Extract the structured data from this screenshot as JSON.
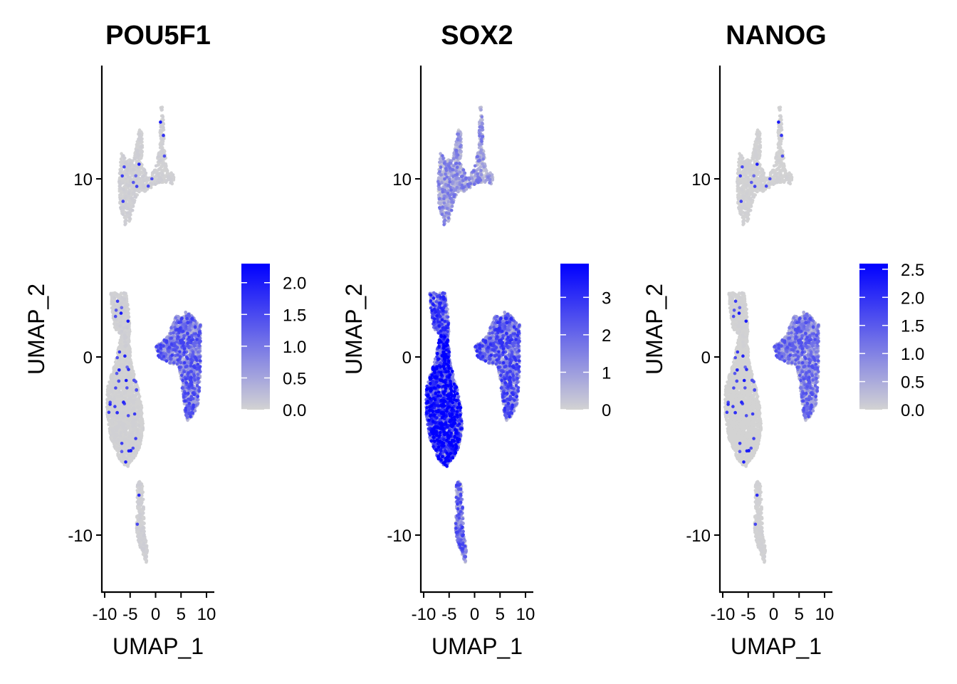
{
  "chart_data": [
    {
      "type": "scatter",
      "title": "POU5F1",
      "xlabel": "UMAP_1",
      "ylabel": "UMAP_2",
      "xlim": [
        -11,
        11
      ],
      "ylim": [
        -13,
        16.5
      ],
      "x_ticks": [
        -10,
        -5,
        0,
        5,
        10
      ],
      "x_tick_labels": [
        "-10",
        "-5",
        "0",
        "5",
        "10"
      ],
      "y_ticks": [
        -10,
        0,
        10
      ],
      "y_tick_labels": [
        "-10",
        "0",
        "10"
      ],
      "color_scale": {
        "low": "#d3d3d3",
        "high": "#0000ff",
        "min": 0,
        "max": 2.3
      },
      "legend_ticks": [
        0.0,
        0.5,
        1.0,
        1.5,
        2.0
      ],
      "legend_tick_labels": [
        "0.0",
        "0.5",
        "1.0",
        "1.5",
        "2.0"
      ],
      "legend_position": "right",
      "cluster_expression": {
        "top": 0.02,
        "upper_left": 0.02,
        "main": 0.01,
        "bottom": 0.02,
        "right": 0.45
      }
    },
    {
      "type": "scatter",
      "title": "SOX2",
      "xlabel": "UMAP_1",
      "ylabel": "UMAP_2",
      "xlim": [
        -11,
        11
      ],
      "ylim": [
        -13,
        16.5
      ],
      "x_ticks": [
        -10,
        -5,
        0,
        5,
        10
      ],
      "x_tick_labels": [
        "-10",
        "-5",
        "0",
        "5",
        "10"
      ],
      "y_ticks": [
        -10,
        0,
        10
      ],
      "y_tick_labels": [
        "-10",
        "0",
        "10"
      ],
      "color_scale": {
        "low": "#d3d3d3",
        "high": "#0000ff",
        "min": 0,
        "max": 3.9
      },
      "legend_ticks": [
        0,
        1,
        2,
        3
      ],
      "legend_tick_labels": [
        "0",
        "1",
        "2",
        "3"
      ],
      "legend_position": "right",
      "cluster_expression": {
        "top": 0.3,
        "upper_left": 0.55,
        "main": 0.72,
        "bottom": 0.45,
        "right": 0.5
      }
    },
    {
      "type": "scatter",
      "title": "NANOG",
      "xlabel": "UMAP_1",
      "ylabel": "UMAP_2",
      "xlim": [
        -11,
        11
      ],
      "ylim": [
        -13,
        16.5
      ],
      "x_ticks": [
        -10,
        -5,
        0,
        5,
        10
      ],
      "x_tick_labels": [
        "-10",
        "-5",
        "0",
        "5",
        "10"
      ],
      "y_ticks": [
        -10,
        0,
        10
      ],
      "y_tick_labels": [
        "-10",
        "0",
        "10"
      ],
      "color_scale": {
        "low": "#d3d3d3",
        "high": "#0000ff",
        "min": 0,
        "max": 2.6
      },
      "legend_ticks": [
        0.0,
        0.5,
        1.0,
        1.5,
        2.0,
        2.5
      ],
      "legend_tick_labels": [
        "0.0",
        "0.5",
        "1.0",
        "1.5",
        "2.0",
        "2.5"
      ],
      "legend_position": "right",
      "cluster_expression": {
        "top": 0.01,
        "upper_left": 0.01,
        "main": 0.0,
        "bottom": 0.01,
        "right": 0.4
      }
    }
  ]
}
